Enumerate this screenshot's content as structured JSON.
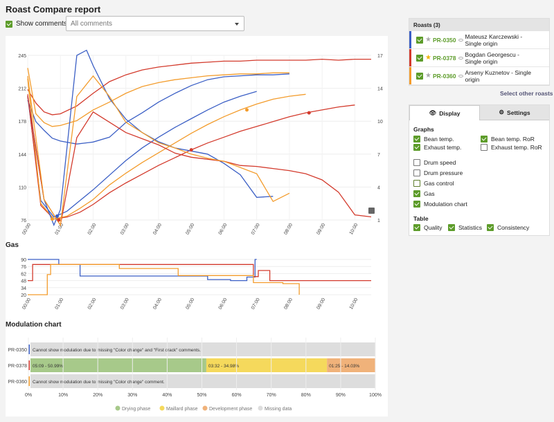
{
  "title": "Roast Compare report",
  "show_comments": {
    "label": "Show comments",
    "checked": true
  },
  "comments_select": {
    "value": "All comments"
  },
  "roasts": {
    "header": "Roasts (3)",
    "items": [
      {
        "code": "PR-0350",
        "name": "Mateusz Karczewski - Single origin",
        "color": "#3b5fc5",
        "starred": false
      },
      {
        "code": "PR-0378",
        "name": "Bogdan Georgescu - Single origin",
        "color": "#d33a2c",
        "starred": true
      },
      {
        "code": "PR-0360",
        "name": "Arseny Kuznetov - Single origin",
        "color": "#f39c2c",
        "starred": false
      }
    ],
    "select_other": "Select other roasts"
  },
  "tabs": {
    "display": "Display",
    "settings": "Settings"
  },
  "graphs": {
    "label": "Graphs",
    "bean_temp": "Bean temp.",
    "bean_ror": "Bean temp. RoR",
    "exhaust_temp": "Exhaust temp.",
    "exhaust_ror": "Exhaust temp. RoR",
    "drum_speed": "Drum speed",
    "drum_pressure": "Drum pressure",
    "gas_control": "Gas control",
    "gas": "Gas",
    "modulation": "Modulation chart"
  },
  "table": {
    "label": "Table",
    "quality": "Quality",
    "statistics": "Statistics",
    "consistency": "Consistency"
  },
  "chart_data": [
    {
      "type": "line",
      "title": "",
      "x_ticks": [
        "00:00",
        "01:00",
        "02:00",
        "03:00",
        "04:00",
        "05:00",
        "06:00",
        "07:00",
        "08:00",
        "09:00",
        "10:00"
      ],
      "y_ticks_left": [
        "76",
        "110",
        "144",
        "178",
        "212",
        "245"
      ],
      "y_ticks_right": [
        "1",
        "4",
        "7",
        "10",
        "14",
        "17"
      ],
      "ylim_left": [
        76,
        245
      ],
      "ylim_right": [
        1,
        17
      ],
      "series": [
        {
          "roast": "PR-0350",
          "color": "#3b5fc5",
          "x_min": [
            0,
            0.25,
            0.5,
            0.75,
            1,
            1.5,
            2,
            2.5,
            3,
            3.5,
            4,
            4.5,
            5,
            5.5,
            6,
            6.5,
            7,
            7.5,
            8
          ],
          "y": [
            199,
            177,
            168,
            160,
            157,
            154,
            156,
            161,
            176,
            186,
            197,
            206,
            214,
            220,
            223,
            224,
            225,
            225,
            226
          ]
        },
        {
          "roast": "PR-0378",
          "color": "#d33a2c",
          "x_min": [
            0,
            0.25,
            0.5,
            0.75,
            1,
            1.5,
            2,
            2.5,
            3,
            3.5,
            4,
            4.5,
            5,
            5.5,
            6,
            6.5,
            7,
            7.5,
            8,
            8.5,
            9,
            9.5,
            10,
            10.5
          ],
          "y": [
            210,
            196,
            187,
            184,
            185,
            193,
            206,
            218,
            225,
            230,
            233,
            235,
            237,
            238,
            239,
            239,
            240,
            240,
            240,
            240,
            241,
            240,
            241,
            241
          ]
        },
        {
          "roast": "PR-0360",
          "color": "#f39c2c",
          "x_min": [
            0,
            0.25,
            0.5,
            0.75,
            1,
            1.5,
            2,
            2.5,
            3,
            3.5,
            4,
            4.5,
            5,
            5.5,
            6,
            6.5,
            7,
            7.5,
            8
          ],
          "y": [
            232,
            185,
            176,
            172,
            173,
            178,
            189,
            197,
            206,
            213,
            217,
            220,
            222,
            224,
            225,
            226,
            226,
            227,
            227
          ]
        },
        {
          "roast": "PR-0350",
          "color": "#3b5fc5",
          "x_min": [
            0,
            0.4,
            0.8,
            1.2,
            1.6,
            2,
            2.5,
            3,
            3.5,
            4,
            4.5,
            5,
            5.5,
            6,
            6.5,
            7
          ],
          "y": [
            203,
            96,
            79,
            85,
            96,
            107,
            122,
            137,
            150,
            161,
            171,
            180,
            189,
            197,
            203,
            208
          ]
        },
        {
          "roast": "PR-0378",
          "color": "#d33a2c",
          "x_min": [
            0,
            0.4,
            0.8,
            1.2,
            1.6,
            2,
            2.5,
            3,
            3.5,
            4,
            4.5,
            5,
            5.5,
            6,
            6.5,
            7,
            7.5,
            8,
            8.5,
            9,
            9.5,
            10
          ],
          "y": [
            205,
            91,
            77,
            79,
            84,
            92,
            104,
            114,
            123,
            132,
            140,
            148,
            155,
            161,
            167,
            172,
            177,
            182,
            186,
            189,
            192,
            194
          ]
        },
        {
          "roast": "PR-0360",
          "color": "#f39c2c",
          "x_min": [
            0,
            0.4,
            0.8,
            1.2,
            1.6,
            2,
            2.5,
            3,
            3.5,
            4,
            4.5,
            5,
            5.5,
            6,
            6.5,
            7,
            7.5,
            8,
            8.5
          ],
          "y": [
            221,
            93,
            77,
            80,
            88,
            97,
            112,
            124,
            135,
            145,
            155,
            165,
            174,
            182,
            189,
            195,
            200,
            203,
            205
          ]
        },
        {
          "roast": "PR-0350",
          "color": "#3b5fc5",
          "axis": "right",
          "x_min": [
            0,
            0.5,
            0.8,
            1,
            1.5,
            1.8,
            2,
            2.5,
            3,
            3.5,
            4,
            4.5,
            5,
            5.5,
            6,
            6.5,
            7,
            7.5
          ],
          "y": [
            13,
            3,
            0.5,
            2,
            17,
            17.5,
            16,
            12.8,
            10.8,
            9.5,
            8.6,
            8.0,
            7.7,
            7.4,
            6.5,
            5.4,
            3.2,
            3.3
          ]
        },
        {
          "roast": "PR-0378",
          "color": "#d33a2c",
          "axis": "right",
          "x_min": [
            0,
            0.5,
            1,
            1.5,
            2,
            2.5,
            3,
            3.5,
            4,
            4.5,
            5,
            5.5,
            6,
            6.5,
            7,
            7.5,
            8,
            8.5,
            9,
            9.5,
            10,
            10.5
          ],
          "y": [
            13,
            3,
            0.5,
            9,
            11.5,
            10.5,
            9.5,
            8.9,
            8.3,
            7.5,
            7.1,
            6.9,
            6.7,
            6.3,
            6.2,
            6.0,
            5.8,
            5.5,
            4.9,
            3.7,
            1.5,
            1.3
          ]
        },
        {
          "roast": "PR-0360",
          "color": "#f39c2c",
          "axis": "right",
          "x_min": [
            0,
            0.5,
            1,
            1.5,
            2,
            2.5,
            3,
            3.5,
            4,
            4.5,
            5,
            5.5,
            6,
            6.5,
            7,
            7.5,
            8
          ],
          "y": [
            15,
            3,
            0.5,
            13,
            15,
            13,
            10.5,
            9.5,
            8.5,
            8.0,
            7.4,
            7.0,
            6.7,
            6.1,
            5.5,
            2.8,
            3.6
          ]
        }
      ]
    },
    {
      "type": "line",
      "title": "Gas",
      "x_ticks": [
        "00:00",
        "01:00",
        "02:00",
        "03:00",
        "04:00",
        "05:00",
        "06:00",
        "07:00",
        "08:00",
        "09:00",
        "10:00"
      ],
      "y_ticks": [
        "20",
        "34",
        "48",
        "62",
        "76",
        "90"
      ],
      "ylim": [
        20,
        90
      ],
      "series": [
        {
          "roast": "PR-0350",
          "color": "#3b5fc5",
          "x_min": [
            0,
            0.95,
            0.95,
            1.6,
            1.6,
            5.5,
            5.5,
            6.2,
            6.2,
            6.7,
            6.7,
            6.95,
            6.95,
            7
          ],
          "y": [
            90,
            90,
            80,
            80,
            57,
            57,
            50,
            50,
            48,
            48,
            55,
            55,
            90,
            90
          ]
        },
        {
          "roast": "PR-0378",
          "color": "#d33a2c",
          "x_min": [
            0,
            0.15,
            0.15,
            0.85,
            0.85,
            6.9,
            6.9,
            7.05,
            7.05,
            7.4,
            7.4,
            10.5
          ],
          "y": [
            48,
            48,
            80,
            80,
            80,
            80,
            56,
            56,
            68,
            68,
            48,
            48
          ]
        },
        {
          "roast": "PR-0360",
          "color": "#f39c2c",
          "x_min": [
            0,
            0.6,
            0.6,
            0.7,
            0.7,
            2.8,
            2.8,
            4.6,
            4.6,
            6.9,
            6.9,
            7.8,
            7.8,
            8.3,
            8.3
          ],
          "y": [
            20,
            20,
            60,
            60,
            80,
            80,
            72,
            72,
            58,
            58,
            44,
            44,
            42,
            42,
            20
          ]
        }
      ]
    },
    {
      "type": "bar",
      "title": "Modulation chart",
      "categories": [
        "PR-0350",
        "PR-0378",
        "PR-0360"
      ],
      "x_ticks": [
        "0%",
        "10%",
        "20%",
        "30%",
        "40%",
        "50%",
        "60%",
        "70%",
        "80%",
        "90%",
        "100%"
      ],
      "rows": [
        {
          "roast": "PR-0350",
          "segments": [
            {
              "phase": "Missing data",
              "share": 100,
              "label": "Cannot show modulation due to missing \"Color change\" and \"First crack\" comments."
            }
          ]
        },
        {
          "roast": "PR-0378",
          "segments": [
            {
              "phase": "Drying phase",
              "share": 50.99,
              "label": "05:09 - 50.99%"
            },
            {
              "phase": "Maillard phase",
              "share": 34.98,
              "label": "03:32 - 34.98%"
            },
            {
              "phase": "Development phase",
              "share": 14.03,
              "label": "01:25 - 14.03%"
            }
          ]
        },
        {
          "roast": "PR-0360",
          "segments": [
            {
              "phase": "Missing data",
              "share": 100,
              "label": "Cannot show modulation due to missing \"Color change\" comment."
            }
          ]
        }
      ],
      "legend": [
        {
          "label": "Drying phase",
          "color": "#a7c98a"
        },
        {
          "label": "Maillard phase",
          "color": "#f5d95c"
        },
        {
          "label": "Development phase",
          "color": "#f0b27a"
        },
        {
          "label": "Missing data",
          "color": "#dddddd"
        }
      ]
    }
  ]
}
